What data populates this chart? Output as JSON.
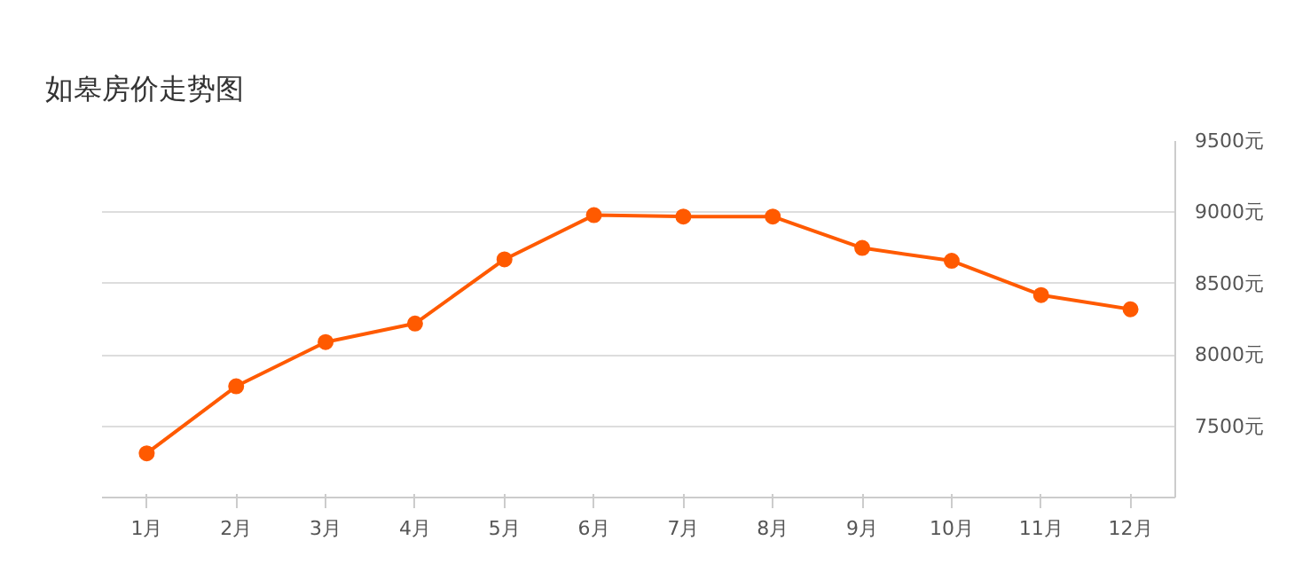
{
  "chart_data": {
    "type": "line",
    "title": "如皋房价走势图",
    "categories": [
      "1月",
      "2月",
      "3月",
      "4月",
      "5月",
      "6月",
      "7月",
      "8月",
      "9月",
      "10月",
      "11月",
      "12月"
    ],
    "series": [
      {
        "color": "#ff5a00",
        "values": [
          7310,
          7780,
          8090,
          8220,
          8670,
          8980,
          8970,
          8970,
          8750,
          8660,
          8420,
          8320
        ]
      }
    ],
    "ylim": [
      7000,
      9500
    ],
    "yticks": [
      {
        "value": 7500,
        "label": "7500元"
      },
      {
        "value": 8000,
        "label": "8000元"
      },
      {
        "value": 8500,
        "label": "8500元"
      },
      {
        "value": 9000,
        "label": "9000元"
      },
      {
        "value": 9500,
        "label": "9500元"
      }
    ],
    "grid": "y",
    "marker": "circle",
    "line_style": "solid"
  }
}
